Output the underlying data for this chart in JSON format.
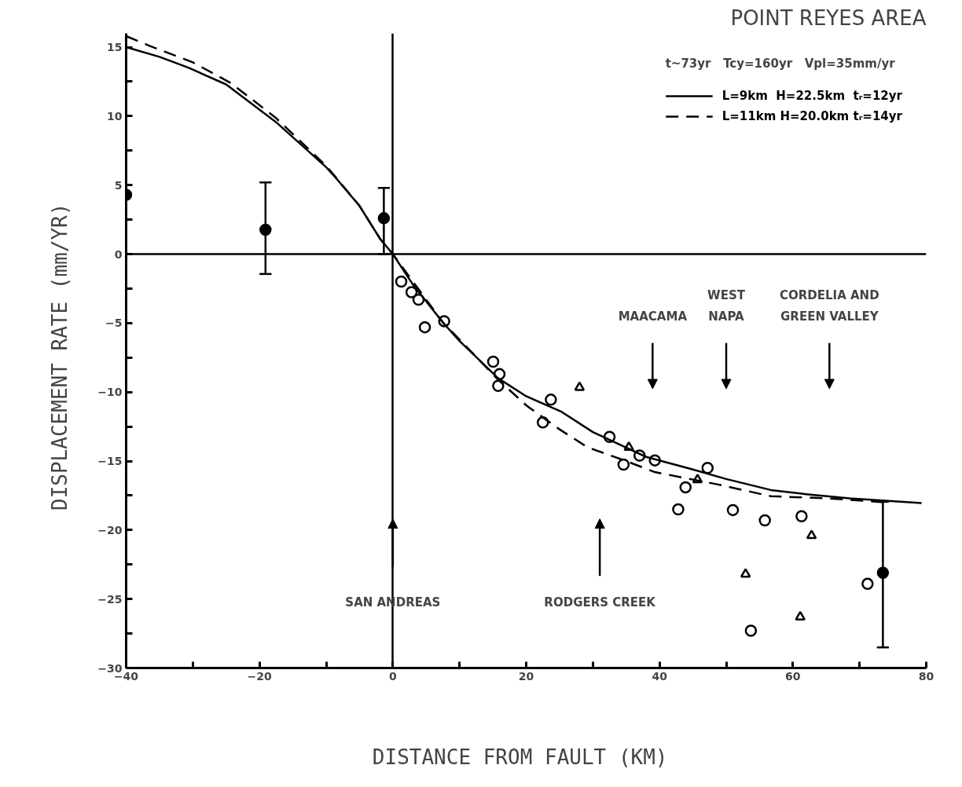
{
  "chart_data": {
    "type": "line",
    "title": "POINT REYES AREA",
    "xlabel": "DISTANCE FROM FAULT  (KM)",
    "ylabel": "DISPLACEMENT RATE  (mm/YR)",
    "legend_title": "t~73yr   Tcy=160yr   Vpl=35mm/yr",
    "xlim": [
      -40,
      80
    ],
    "ylim": [
      -30,
      16
    ],
    "xticks": [
      -40,
      {
        "value": -30,
        "label": null
      },
      -20,
      {
        "value": -10,
        "label": null
      },
      0,
      {
        "value": 10,
        "label": null
      },
      20,
      {
        "value": 30,
        "label": null
      },
      40,
      {
        "value": 50,
        "label": null
      },
      60,
      {
        "value": 70,
        "label": null
      },
      80
    ],
    "yticks": [
      -30,
      {
        "value": -27.5,
        "label": null
      },
      -25,
      {
        "value": -22.5,
        "label": null
      },
      -20,
      {
        "value": -17.5,
        "label": null
      },
      -15,
      {
        "value": -12.5,
        "label": null
      },
      -10,
      {
        "value": -7.5,
        "label": null
      },
      -5,
      {
        "value": -2.5,
        "label": null
      },
      0,
      {
        "value": 2.5,
        "label": null
      },
      5,
      {
        "value": 7.5,
        "label": null
      },
      10,
      {
        "value": 12.5,
        "label": null
      },
      15
    ],
    "legend": "top right",
    "series": [
      {
        "name": "L=9km  H=22.5km  tᵣ=12yr",
        "color": "#000000",
        "line_style": "solid",
        "x": [
          -40,
          -35,
          -30.6,
          -25,
          -17.6,
          -10,
          -8.5,
          -5,
          -1.9,
          0,
          3,
          7.5,
          10,
          15.8,
          20,
          25.2,
          30,
          33.1,
          38,
          44.9,
          50,
          56.7,
          62,
          68.5,
          79.3
        ],
        "values": [
          15.0,
          14.3,
          13.5,
          12.3,
          9.6,
          6.3,
          5.5,
          3.5,
          1.1,
          0,
          -2.2,
          -4.95,
          -6.3,
          -9.0,
          -10.3,
          -11.4,
          -12.9,
          -13.6,
          -14.7,
          -15.6,
          -16.3,
          -17.1,
          -17.4,
          -17.7,
          -18.05
        ]
      },
      {
        "name": "L=11km H=20.0km tᵣ=14yr",
        "color": "#000000",
        "line_style": "dashed",
        "x": [
          -40,
          -36.5,
          -30,
          -24.3,
          -17.6,
          -10,
          -5,
          -1.9,
          0,
          7.5,
          15.8,
          20.1,
          25,
          29.2,
          35,
          39.3,
          48.8,
          56.7,
          65.3,
          74
        ],
        "values": [
          15.8,
          15.1,
          13.9,
          12.4,
          9.9,
          6.4,
          3.5,
          1.1,
          0,
          -4.95,
          -9.1,
          -11.0,
          -12.7,
          -14.0,
          -15.0,
          -15.8,
          -16.7,
          -17.55,
          -17.7,
          -18.0
        ]
      },
      {
        "type": "scatter",
        "marker": "circle",
        "color": "#000000",
        "x": [
          1.26,
          2.8,
          3.85,
          4.8,
          7.7,
          15.05,
          16.0,
          15.8,
          23.7,
          22.5,
          32.5,
          37.0,
          34.6,
          39.3,
          43.9,
          42.8,
          47.2,
          51.0,
          55.8,
          61.3,
          53.7,
          71.2
        ],
        "values": [
          -1.99,
          -2.76,
          -3.3,
          -5.3,
          -4.86,
          -7.8,
          -8.7,
          -9.55,
          -10.55,
          -12.2,
          -13.25,
          -14.6,
          -15.25,
          -14.95,
          -16.9,
          -18.5,
          -15.5,
          -18.55,
          -19.3,
          -19.0,
          -27.3,
          -23.9
        ]
      },
      {
        "type": "scatter",
        "marker": "triangle",
        "color": "#000000",
        "x": [
          28.0,
          35.4,
          45.7,
          62.8,
          52.9,
          61.1
        ],
        "values": [
          -9.66,
          -14.0,
          -16.35,
          -20.4,
          -23.2,
          -26.3
        ]
      },
      {
        "type": "scatter",
        "marker": "circle",
        "color": "#000000",
        "x": [
          -40,
          -19.1,
          -1.35,
          73.5
        ],
        "values": [
          4.3,
          1.77,
          2.6,
          -23.1
        ],
        "errors": [
          null,
          [
            -1.44,
            5.2
          ],
          [
            0,
            4.8
          ],
          [
            -28.5,
            -17.95
          ]
        ]
      }
    ],
    "ref_lines": [
      {
        "axis": "x",
        "value": 0,
        "label": "SAN ANDREAS"
      },
      {
        "axis": "y",
        "value": 0
      }
    ],
    "annotations": [
      "RODGERS CREEK",
      "MAACAMA",
      "WEST\nNAPA",
      "CORDELIA AND\nGREEN VALLEY"
    ]
  }
}
